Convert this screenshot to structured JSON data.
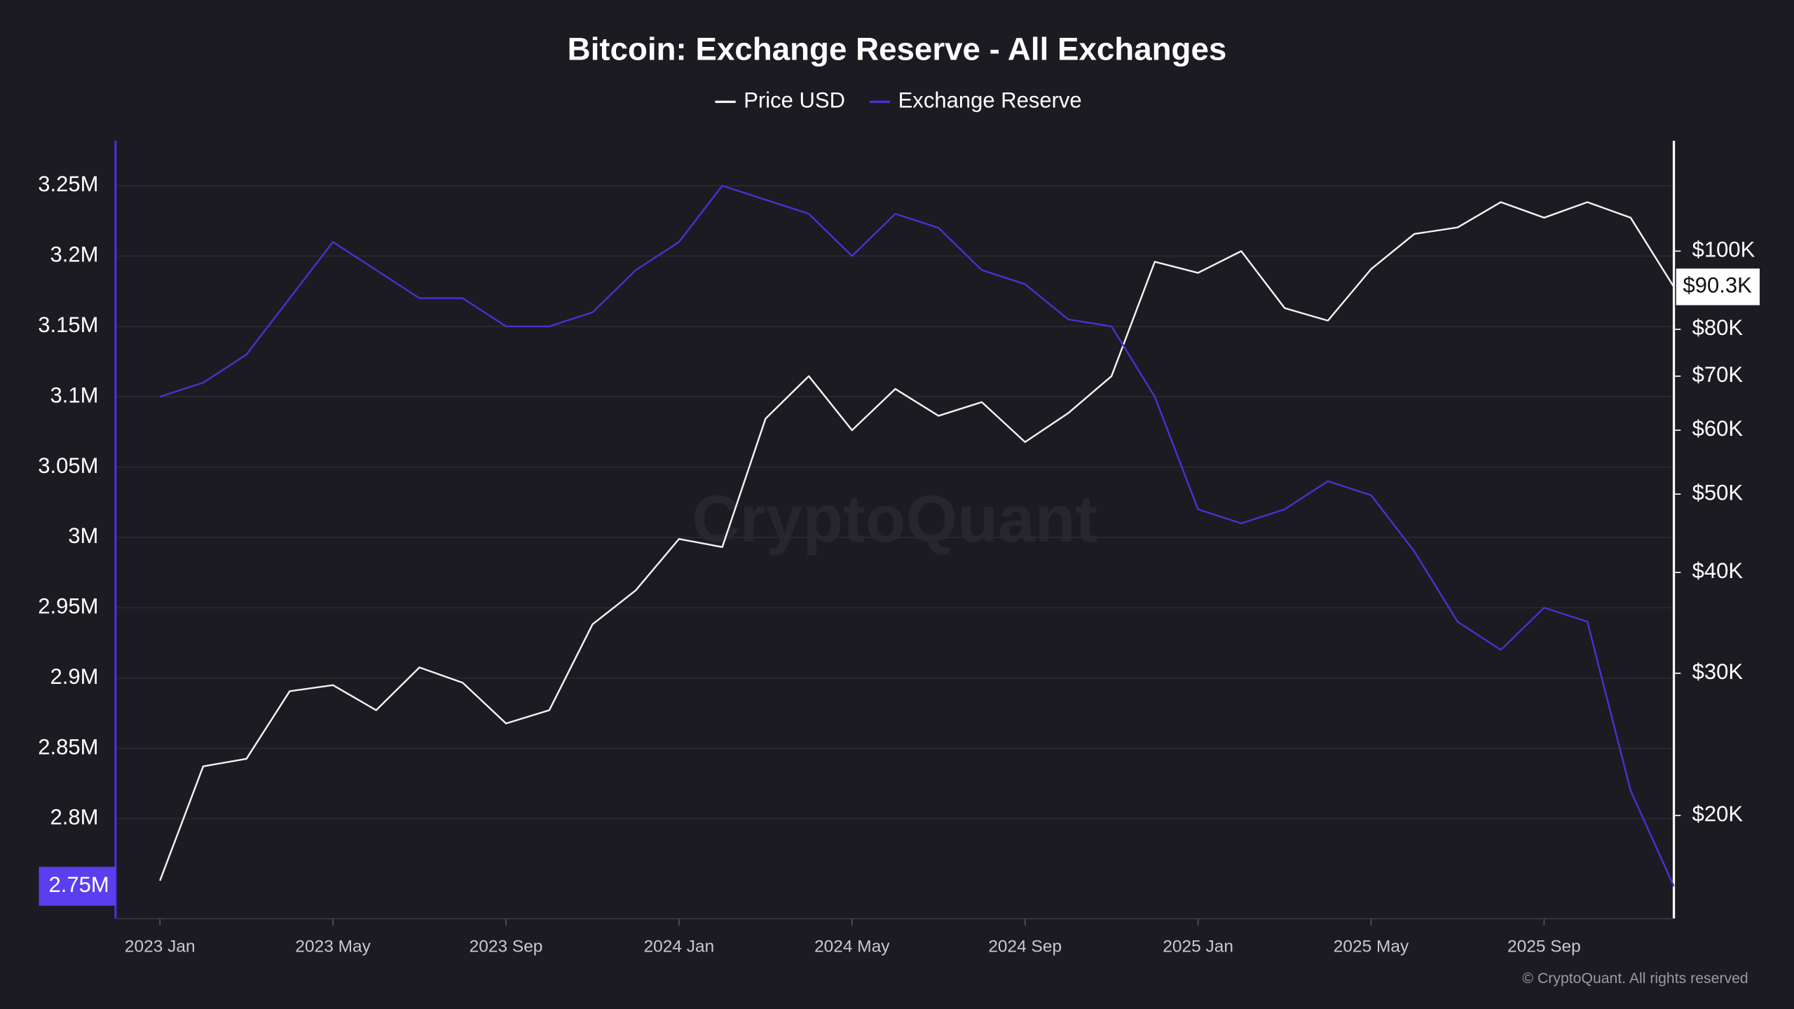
{
  "chart_data": {
    "type": "line",
    "title": "Bitcoin: Exchange Reserve - All Exchanges",
    "watermark": "CryptoQuant",
    "copyright": "© CryptoQuant. All rights reserved",
    "x": [
      "2023-01",
      "2023-02",
      "2023-03",
      "2023-04",
      "2023-05",
      "2023-06",
      "2023-07",
      "2023-08",
      "2023-09",
      "2023-10",
      "2023-11",
      "2023-12",
      "2024-01",
      "2024-02",
      "2024-03",
      "2024-04",
      "2024-05",
      "2024-06",
      "2024-07",
      "2024-08",
      "2024-09",
      "2024-10",
      "2024-11",
      "2024-12",
      "2025-01",
      "2025-02",
      "2025-03",
      "2025-04",
      "2025-05",
      "2025-06",
      "2025-07",
      "2025-08",
      "2025-09",
      "2025-10",
      "2025-11",
      "2025-12"
    ],
    "xlim": [
      "2022-12",
      "2025-12"
    ],
    "xticks": [
      {
        "value": "2023-01",
        "label": "2023 Jan"
      },
      {
        "value": "2023-05",
        "label": "2023 May"
      },
      {
        "value": "2023-09",
        "label": "2023 Sep"
      },
      {
        "value": "2024-01",
        "label": "2024 Jan"
      },
      {
        "value": "2024-05",
        "label": "2024 May"
      },
      {
        "value": "2024-09",
        "label": "2024 Sep"
      },
      {
        "value": "2025-01",
        "label": "2025 Jan"
      },
      {
        "value": "2025-05",
        "label": "2025 May"
      },
      {
        "value": "2025-09",
        "label": "2025 Sep"
      }
    ],
    "ylim": [
      2729000,
      3282000
    ],
    "yticks": [
      {
        "value": 2800000,
        "label": "2.8M"
      },
      {
        "value": 2850000,
        "label": "2.85M"
      },
      {
        "value": 2900000,
        "label": "2.9M"
      },
      {
        "value": 2950000,
        "label": "2.95M"
      },
      {
        "value": 3000000,
        "label": "3M"
      },
      {
        "value": 3050000,
        "label": "3.05M"
      },
      {
        "value": 3100000,
        "label": "3.1M"
      },
      {
        "value": 3150000,
        "label": "3.15M"
      },
      {
        "value": 3200000,
        "label": "3.2M"
      },
      {
        "value": 3250000,
        "label": "3.25M"
      }
    ],
    "y2lim": [
      14900,
      137000
    ],
    "y2_log": true,
    "y2ticks": [
      {
        "value": 20000,
        "label": "$20K"
      },
      {
        "value": 30000,
        "label": "$30K"
      },
      {
        "value": 40000,
        "label": "$40K"
      },
      {
        "value": 50000,
        "label": "$50K"
      },
      {
        "value": 60000,
        "label": "$60K"
      },
      {
        "value": 70000,
        "label": "$70K"
      },
      {
        "value": 80000,
        "label": "$80K"
      },
      {
        "value": 100000,
        "label": "$100K"
      }
    ],
    "grid": true,
    "series": [
      {
        "name": "Price USD",
        "color": "#f2f2f2",
        "axis": "y2",
        "values": [
          16600,
          23000,
          23500,
          28500,
          29000,
          27000,
          30500,
          29200,
          26000,
          27000,
          34500,
          38000,
          44000,
          43000,
          62000,
          70000,
          60000,
          67500,
          62500,
          65000,
          58000,
          63000,
          70000,
          97000,
          94000,
          100000,
          85000,
          82000,
          95000,
          105000,
          107000,
          115000,
          110000,
          115000,
          110000,
          90300
        ],
        "last_label": {
          "value": 90300,
          "label": "$90.3K"
        }
      },
      {
        "name": "Exchange Reserve",
        "color": "#4a30d0",
        "values": [
          3100000,
          3110000,
          3130000,
          3170000,
          3210000,
          3190000,
          3170000,
          3170000,
          3150000,
          3150000,
          3160000,
          3190000,
          3210000,
          3250000,
          3240000,
          3230000,
          3200000,
          3230000,
          3220000,
          3190000,
          3180000,
          3155000,
          3150000,
          3100000,
          3020000,
          3010000,
          3020000,
          3040000,
          3030000,
          2990000,
          2940000,
          2920000,
          2950000,
          2940000,
          2820000,
          2752000
        ],
        "last_label": {
          "value": 2752000,
          "label": "2.75M"
        }
      }
    ]
  }
}
